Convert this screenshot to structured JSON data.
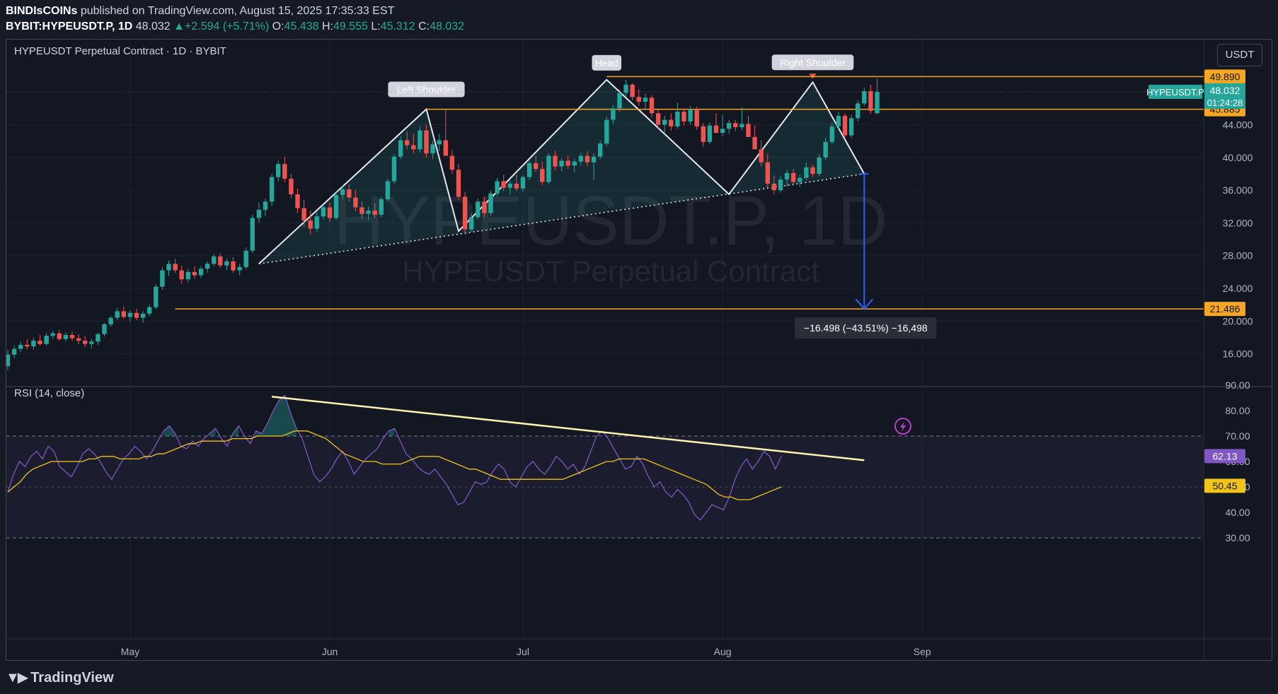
{
  "header": {
    "author": "BINDIsCOINs",
    "published_text": "published on TradingView.com, August 15, 2025 17:35:33 EST",
    "symbol": "BYBIT:HYPEUSDT.P, 1D",
    "last": "48.032",
    "change": "+2.594 (+5.71%)",
    "o_label": "O:",
    "o": "45.438",
    "h_label": "H:",
    "h": "49.555",
    "l_label": "L:",
    "l": "45.312",
    "c_label": "C:",
    "c": "48.032"
  },
  "chart_title": "HYPEUSDT Perpetual Contract · 1D · BYBIT",
  "currency_button": "USDT",
  "watermark": {
    "line1": "HYPEUSDT.P, 1D",
    "line2": "HYPEUSDT Perpetual Contract"
  },
  "annotations": {
    "left_shoulder": "Left Shoulder",
    "head": "Head",
    "right_shoulder": "Right Shoulder",
    "measure": "−16.498 (−43.51%) −16,498"
  },
  "price_labels": {
    "symbol_tag": "HYPEUSDT.P",
    "current": "48.032",
    "countdown": "01:24:28",
    "level_top": "49.890",
    "level_mid": "45.885",
    "level_target": "21.486"
  },
  "rsi": {
    "title": "RSI (14, close)",
    "value": "62.13",
    "ma_value": "50.45"
  },
  "logo_text": "TradingView",
  "colors": {
    "background": "#131722",
    "bull": "#26a69a",
    "bear": "#ef5350",
    "level": "#f5a623",
    "rsi_line": "#7e57c2",
    "rsi_ma": "#f0c419",
    "measure": "#2962ff",
    "trendline": "#fff3b0"
  },
  "chart_data": [
    {
      "type": "candlestick",
      "title": "HYPEUSDT Perpetual Contract · 1D · BYBIT",
      "y_axis_ticks": [
        16,
        20,
        24,
        28,
        32,
        36,
        40,
        44
      ],
      "x_axis_ticks": [
        "May",
        "Jun",
        "Jul",
        "Aug",
        "Sep"
      ],
      "horizontal_levels": [
        49.89,
        45.885,
        21.486
      ],
      "pattern": {
        "name": "Head and Shoulders",
        "points": [
          {
            "date": "2025-05-21",
            "price": 27.0
          },
          {
            "date": "2025-06-16",
            "price": 45.9,
            "label": "Left Shoulder"
          },
          {
            "date": "2025-06-21",
            "price": 31.0
          },
          {
            "date": "2025-07-14",
            "price": 49.5,
            "label": "Head"
          },
          {
            "date": "2025-08-02",
            "price": 35.5
          },
          {
            "date": "2025-08-15",
            "price": 49.2,
            "label": "Right Shoulder"
          },
          {
            "date": "2025-08-23",
            "price": 38.0
          }
        ],
        "neckline": [
          {
            "date": "2025-05-21",
            "price": 27.0
          },
          {
            "date": "2025-08-23",
            "price": 38.0
          }
        ]
      },
      "measurement": {
        "from": 38.0,
        "to": 21.486,
        "change": -16.498,
        "percent": -43.51
      },
      "candles_ohlc": [
        [
          14.5,
          16.5,
          14.0,
          15.9
        ],
        [
          15.9,
          17.0,
          15.5,
          16.6
        ],
        [
          16.6,
          17.5,
          16.2,
          17.1
        ],
        [
          17.1,
          17.8,
          16.5,
          16.9
        ],
        [
          16.9,
          18.0,
          16.5,
          17.6
        ],
        [
          17.6,
          18.3,
          17.0,
          17.2
        ],
        [
          17.2,
          18.5,
          17.0,
          18.2
        ],
        [
          18.2,
          18.8,
          17.8,
          18.5
        ],
        [
          18.5,
          18.9,
          17.6,
          17.8
        ],
        [
          17.8,
          18.6,
          17.5,
          18.3
        ],
        [
          18.3,
          18.7,
          17.6,
          17.9
        ],
        [
          17.9,
          18.4,
          17.2,
          17.6
        ],
        [
          17.6,
          18.2,
          16.8,
          17.2
        ],
        [
          17.2,
          17.8,
          16.6,
          17.5
        ],
        [
          17.5,
          18.6,
          17.1,
          18.4
        ],
        [
          18.4,
          19.8,
          18.1,
          19.6
        ],
        [
          19.6,
          20.6,
          19.3,
          20.4
        ],
        [
          20.4,
          21.6,
          20.1,
          21.2
        ],
        [
          21.2,
          21.8,
          20.3,
          20.5
        ],
        [
          20.5,
          21.3,
          19.9,
          21.0
        ],
        [
          21.0,
          21.5,
          20.1,
          20.4
        ],
        [
          20.4,
          21.2,
          19.8,
          20.9
        ],
        [
          20.9,
          22.0,
          20.6,
          21.7
        ],
        [
          21.7,
          24.5,
          21.4,
          24.2
        ],
        [
          24.2,
          26.6,
          23.8,
          26.2
        ],
        [
          26.2,
          27.4,
          25.5,
          27.0
        ],
        [
          27.0,
          27.6,
          25.9,
          26.2
        ],
        [
          26.2,
          26.8,
          24.6,
          25.1
        ],
        [
          25.1,
          26.4,
          24.7,
          26.0
        ],
        [
          26.0,
          26.7,
          25.2,
          25.6
        ],
        [
          25.6,
          26.7,
          25.3,
          26.4
        ],
        [
          26.4,
          27.3,
          25.9,
          27.0
        ],
        [
          27.0,
          28.2,
          26.7,
          27.9
        ],
        [
          27.9,
          28.3,
          26.5,
          26.8
        ],
        [
          26.8,
          27.6,
          26.2,
          27.3
        ],
        [
          27.3,
          27.8,
          25.9,
          26.2
        ],
        [
          26.2,
          27.0,
          25.6,
          26.6
        ],
        [
          26.6,
          29.0,
          26.3,
          28.6
        ],
        [
          28.6,
          33.0,
          28.3,
          32.6
        ],
        [
          32.6,
          34.5,
          32.0,
          33.6
        ],
        [
          33.6,
          35.0,
          32.8,
          34.6
        ],
        [
          34.6,
          38.0,
          34.1,
          37.6
        ],
        [
          37.6,
          39.6,
          37.1,
          39.2
        ],
        [
          39.2,
          40.1,
          37.0,
          37.4
        ],
        [
          37.4,
          38.0,
          35.0,
          35.5
        ],
        [
          35.5,
          36.2,
          33.2,
          33.8
        ],
        [
          33.8,
          34.8,
          31.5,
          32.3
        ],
        [
          32.3,
          33.5,
          30.6,
          31.3
        ],
        [
          31.3,
          33.4,
          30.9,
          32.8
        ],
        [
          32.8,
          34.2,
          32.4,
          33.9
        ],
        [
          33.9,
          34.5,
          32.1,
          32.6
        ],
        [
          32.6,
          35.8,
          32.3,
          35.4
        ],
        [
          35.4,
          36.5,
          34.9,
          36.1
        ],
        [
          36.1,
          36.7,
          34.6,
          35.1
        ],
        [
          35.1,
          36.0,
          33.4,
          33.9
        ],
        [
          33.9,
          34.6,
          32.5,
          33.1
        ],
        [
          33.1,
          34.0,
          32.4,
          33.5
        ],
        [
          33.5,
          34.4,
          32.6,
          33.0
        ],
        [
          33.0,
          35.2,
          32.7,
          34.9
        ],
        [
          34.9,
          37.4,
          34.6,
          37.1
        ],
        [
          37.1,
          40.4,
          36.8,
          40.1
        ],
        [
          40.1,
          42.6,
          39.8,
          42.1
        ],
        [
          42.1,
          43.2,
          41.0,
          41.5
        ],
        [
          41.5,
          42.9,
          40.5,
          41.0
        ],
        [
          41.0,
          43.8,
          40.6,
          43.3
        ],
        [
          43.3,
          44.0,
          40.0,
          40.5
        ],
        [
          40.5,
          42.0,
          39.8,
          41.6
        ],
        [
          41.6,
          42.9,
          40.8,
          42.1
        ],
        [
          42.1,
          45.9,
          41.7,
          40.2
        ],
        [
          40.2,
          40.9,
          38.0,
          38.5
        ],
        [
          38.5,
          39.2,
          34.8,
          35.2
        ],
        [
          35.2,
          35.8,
          30.6,
          31.2
        ],
        [
          31.2,
          33.2,
          30.9,
          32.7
        ],
        [
          32.7,
          35.0,
          32.4,
          34.6
        ],
        [
          34.6,
          35.2,
          32.7,
          33.2
        ],
        [
          33.2,
          35.9,
          32.9,
          35.6
        ],
        [
          35.6,
          37.5,
          35.3,
          37.1
        ],
        [
          37.1,
          37.9,
          35.9,
          36.3
        ],
        [
          36.3,
          37.2,
          35.5,
          36.8
        ],
        [
          36.8,
          37.9,
          35.9,
          36.2
        ],
        [
          36.2,
          37.8,
          35.8,
          37.6
        ],
        [
          37.6,
          39.6,
          37.2,
          39.3
        ],
        [
          39.3,
          40.2,
          38.2,
          38.6
        ],
        [
          38.6,
          39.5,
          36.6,
          37.0
        ],
        [
          37.0,
          40.5,
          36.7,
          40.2
        ],
        [
          40.2,
          40.8,
          38.4,
          38.9
        ],
        [
          38.9,
          39.9,
          38.3,
          39.6
        ],
        [
          39.6,
          40.2,
          38.6,
          39.0
        ],
        [
          39.0,
          39.8,
          38.2,
          39.5
        ],
        [
          39.5,
          40.6,
          39.0,
          40.2
        ],
        [
          40.2,
          40.8,
          38.9,
          39.4
        ],
        [
          39.4,
          40.5,
          37.3,
          40.1
        ],
        [
          40.1,
          42.1,
          39.8,
          41.7
        ],
        [
          41.7,
          45.0,
          41.4,
          44.6
        ],
        [
          44.6,
          46.4,
          44.1,
          46.0
        ],
        [
          46.0,
          48.3,
          45.6,
          47.9
        ],
        [
          47.9,
          49.5,
          47.4,
          48.9
        ],
        [
          48.9,
          49.1,
          47.0,
          47.4
        ],
        [
          47.4,
          48.3,
          46.3,
          46.8
        ],
        [
          46.8,
          47.8,
          45.9,
          47.3
        ],
        [
          47.3,
          47.6,
          44.9,
          45.4
        ],
        [
          45.4,
          45.9,
          43.5,
          44.0
        ],
        [
          44.0,
          45.1,
          42.9,
          44.6
        ],
        [
          44.6,
          45.4,
          43.3,
          43.8
        ],
        [
          43.8,
          46.7,
          43.5,
          45.6
        ],
        [
          45.6,
          46.0,
          43.9,
          44.4
        ],
        [
          44.4,
          46.3,
          44.0,
          45.9
        ],
        [
          45.9,
          46.2,
          43.4,
          43.8
        ],
        [
          43.8,
          44.2,
          41.3,
          41.9
        ],
        [
          41.9,
          44.3,
          41.6,
          43.9
        ],
        [
          43.9,
          45.4,
          43.5,
          43.0
        ],
        [
          43.0,
          45.2,
          42.6,
          43.5
        ],
        [
          43.5,
          44.6,
          42.9,
          44.2
        ],
        [
          44.2,
          44.6,
          43.2,
          43.7
        ],
        [
          43.7,
          46.1,
          43.3,
          44.1
        ],
        [
          44.1,
          45.1,
          43.0,
          42.5
        ],
        [
          42.5,
          43.9,
          41.4,
          41.0
        ],
        [
          41.0,
          42.1,
          38.9,
          39.4
        ],
        [
          39.4,
          40.4,
          36.3,
          36.8
        ],
        [
          36.8,
          37.8,
          35.5,
          36.0
        ],
        [
          36.0,
          37.8,
          35.7,
          37.3
        ],
        [
          37.3,
          38.5,
          36.4,
          38.1
        ],
        [
          38.1,
          38.6,
          36.6,
          37.0
        ],
        [
          37.0,
          37.9,
          36.4,
          37.5
        ],
        [
          37.5,
          39.4,
          37.2,
          38.8
        ],
        [
          38.8,
          39.1,
          37.6,
          38.0
        ],
        [
          38.0,
          40.4,
          37.7,
          40.0
        ],
        [
          40.0,
          42.4,
          39.7,
          41.9
        ],
        [
          41.9,
          44.3,
          41.6,
          43.8
        ],
        [
          43.8,
          45.6,
          43.4,
          45.1
        ],
        [
          45.1,
          45.4,
          42.3,
          42.7
        ],
        [
          42.7,
          45.2,
          42.4,
          44.8
        ],
        [
          44.8,
          47.0,
          44.4,
          46.6
        ],
        [
          46.6,
          48.5,
          46.3,
          48.1
        ],
        [
          48.1,
          48.9,
          45.3,
          45.7
        ],
        [
          45.4,
          49.6,
          45.3,
          48.0
        ]
      ]
    },
    {
      "type": "line",
      "title": "RSI (14, close)",
      "y_axis_ticks": [
        30,
        40,
        50,
        60,
        70,
        80,
        90
      ],
      "band": [
        30,
        70
      ],
      "series": [
        {
          "name": "RSI",
          "values": [
            48,
            55,
            60,
            58,
            62,
            64,
            61,
            66,
            64,
            58,
            56,
            54,
            58,
            63,
            65,
            63,
            60,
            56,
            53,
            57,
            61,
            63,
            66,
            64,
            61,
            64,
            68,
            72,
            74,
            71,
            66,
            65,
            68,
            66,
            69,
            71,
            73,
            69,
            66,
            71,
            74,
            70,
            67,
            72,
            71,
            75,
            80,
            84,
            86,
            79,
            73,
            69,
            62,
            55,
            52,
            54,
            57,
            61,
            64,
            60,
            55,
            58,
            61,
            63,
            65,
            69,
            72,
            73,
            68,
            63,
            61,
            58,
            56,
            55,
            57,
            54,
            51,
            47,
            43,
            44,
            48,
            52,
            51,
            52,
            56,
            59,
            57,
            52,
            50,
            54,
            58,
            60,
            57,
            55,
            58,
            62,
            60,
            57,
            59,
            55,
            58,
            64,
            70,
            72,
            69,
            65,
            61,
            57,
            58,
            62,
            59,
            54,
            50,
            52,
            48,
            46,
            49,
            47,
            44,
            39,
            37,
            40,
            43,
            42,
            41,
            46,
            53,
            58,
            61,
            57,
            60,
            64,
            62,
            57,
            62
          ]
        },
        {
          "name": "RSI MA",
          "values": [
            48,
            50,
            52,
            55,
            57,
            58,
            59,
            60,
            60,
            60,
            60,
            60,
            60,
            61,
            61,
            62,
            62,
            62,
            61,
            61,
            61,
            61,
            62,
            62,
            63,
            63,
            64,
            65,
            66,
            67,
            67,
            68,
            68,
            68,
            68,
            68,
            69,
            69,
            69,
            69,
            70,
            70,
            70,
            70,
            70,
            71,
            72,
            72,
            72,
            71,
            70,
            69,
            67,
            65,
            63,
            62,
            61,
            60,
            60,
            60,
            59,
            59,
            59,
            59,
            60,
            61,
            62,
            62,
            62,
            62,
            61,
            60,
            59,
            58,
            57,
            57,
            56,
            55,
            54,
            53,
            53,
            53,
            53,
            53,
            53,
            53,
            53,
            53,
            53,
            53,
            54,
            55,
            56,
            57,
            58,
            59,
            60,
            60,
            61,
            61,
            61,
            61,
            61,
            60,
            59,
            58,
            57,
            56,
            55,
            54,
            53,
            52,
            51,
            49,
            47,
            46,
            46,
            45,
            45,
            45,
            46,
            47,
            48,
            49,
            50
          ]
        }
      ],
      "trendline": [
        {
          "date": "2025-05-23",
          "value": 85.5
        },
        {
          "date": "2025-08-23",
          "value": 60.5
        }
      ]
    }
  ]
}
